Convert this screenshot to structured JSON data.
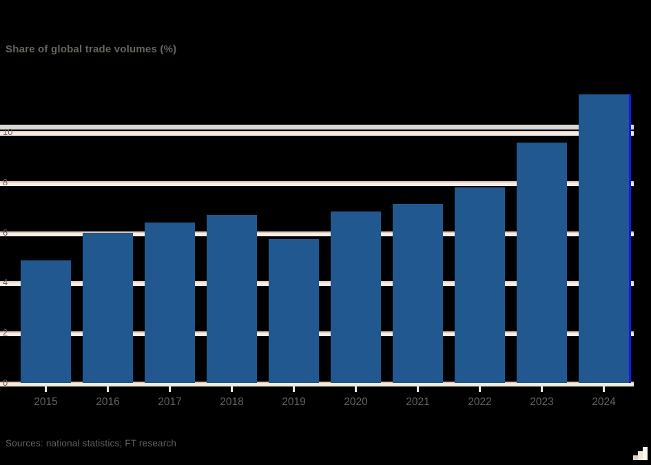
{
  "page": {
    "background": "#000000"
  },
  "header": {
    "subtitle": "Share of global trade volumes (%)"
  },
  "chart_data": {
    "type": "bar",
    "title": "Share of global trade volumes (%)",
    "categories": [
      "2015",
      "2016",
      "2017",
      "2018",
      "2019",
      "2020",
      "2021",
      "2022",
      "2023",
      "2024"
    ],
    "values": [
      4.9,
      6.0,
      6.4,
      6.7,
      5.75,
      6.85,
      7.15,
      7.8,
      9.6,
      11.5
    ],
    "xlabel": "",
    "ylabel": "",
    "ylim": [
      0,
      10
    ],
    "yticks": [
      0,
      2,
      4,
      6,
      8,
      10
    ],
    "grid": true,
    "legend": "none",
    "bar_color": "#20588f",
    "highlighted_bar_index": 9,
    "highlight_edge_color": "#1717f2",
    "gridline_color": "#f4eee6",
    "gridline_edge_color": "#e7c6ba",
    "axis_text_color": "#66605c",
    "tick_mark_color": "#ece6da"
  },
  "footer": {
    "source": "Sources: national statistics; FT research"
  },
  "icons": {
    "steps_icon": "ascending-steps"
  }
}
